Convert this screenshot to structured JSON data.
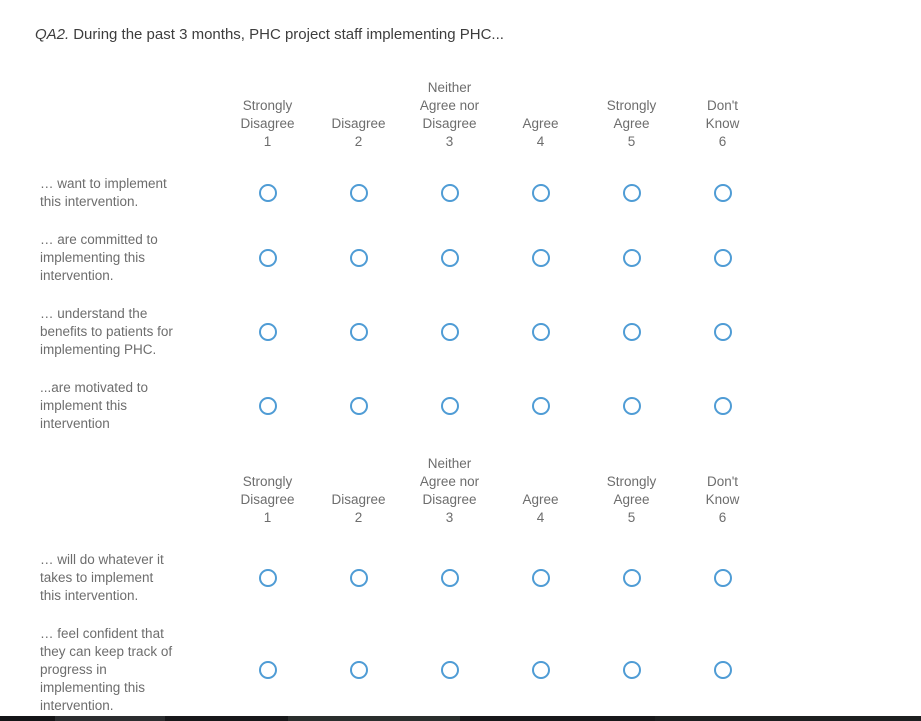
{
  "question": {
    "number": "QA2.",
    "text": "During the past 3 months, PHC project staff implementing PHC..."
  },
  "scale_columns": [
    {
      "label": "Strongly\nDisagree",
      "value": "1"
    },
    {
      "label": "Disagree",
      "value": "2"
    },
    {
      "label": "Neither\nAgree nor\nDisagree",
      "value": "3"
    },
    {
      "label": "Agree",
      "value": "4"
    },
    {
      "label": "Strongly\nAgree",
      "value": "5"
    },
    {
      "label": "Don't\nKnow",
      "value": "6"
    }
  ],
  "matrix1": {
    "rows": [
      "… want to implement\nthis intervention.",
      "… are committed to\nimplementing this\nintervention.",
      "… understand the\nbenefits to patients for\nimplementing PHC.",
      "...are motivated to\nimplement this\nintervention"
    ]
  },
  "matrix2": {
    "rows": [
      "… will do whatever it\ntakes to implement\nthis intervention.",
      "… feel confident that\nthey can keep track of\nprogress in\nimplementing this\nintervention."
    ]
  },
  "radio_state": {
    "selected": "none"
  },
  "colors": {
    "radio_border": "#4f9cd5",
    "label_text": "#6d6d6d",
    "title_text": "#3d3d3d",
    "bottom_bar": "#1b1d1f"
  }
}
